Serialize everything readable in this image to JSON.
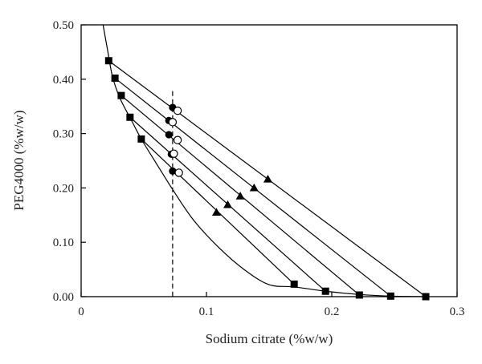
{
  "chart_data": {
    "type": "scatter",
    "xlabel": "Sodium citrate (%w/w)",
    "ylabel": "PEG4000 (%w/w)",
    "xlim": [
      0,
      0.3
    ],
    "ylim": [
      0,
      0.5
    ],
    "x_ticks": [
      0,
      0.1,
      0.2,
      0.3
    ],
    "x_tick_labels": [
      "0",
      "0.1",
      "0.2",
      "0.3"
    ],
    "y_ticks": [
      0,
      0.1,
      0.2,
      0.3,
      0.4,
      0.5
    ],
    "y_tick_labels": [
      "0.00",
      "0.10",
      "0.20",
      "0.30",
      "0.40",
      "0.50"
    ],
    "grid": false,
    "binodal_curve": {
      "x": [
        0.0175,
        0.021,
        0.025,
        0.031,
        0.04,
        0.048,
        0.06,
        0.075,
        0.09,
        0.11,
        0.13,
        0.15,
        0.17,
        0.195,
        0.222,
        0.247,
        0.275
      ],
      "y": [
        0.5,
        0.455,
        0.405,
        0.365,
        0.325,
        0.29,
        0.245,
        0.19,
        0.14,
        0.09,
        0.05,
        0.022,
        0.018,
        0.01,
        0.004,
        0.001,
        0.0
      ]
    },
    "tie_line_ends": {
      "marker": "square",
      "top": [
        [
          0.022,
          0.434
        ],
        [
          0.027,
          0.402
        ],
        [
          0.032,
          0.37
        ],
        [
          0.039,
          0.33
        ],
        [
          0.048,
          0.29
        ]
      ],
      "bottom": [
        [
          0.275,
          0.0
        ],
        [
          0.247,
          0.001
        ],
        [
          0.222,
          0.003
        ],
        [
          0.195,
          0.01
        ],
        [
          0.17,
          0.023
        ]
      ]
    },
    "tie_line_points": {
      "marker": "triangle",
      "x": [
        0.149,
        0.138,
        0.127,
        0.117,
        0.108
      ],
      "y": [
        0.216,
        0.2,
        0.185,
        0.169,
        0.155
      ]
    },
    "filled_circles": {
      "marker": "filled-circle",
      "x": [
        0.073,
        0.07,
        0.07,
        0.072,
        0.073
      ],
      "y": [
        0.348,
        0.324,
        0.298,
        0.262,
        0.231
      ]
    },
    "open_circles": {
      "marker": "open-circle",
      "x": [
        0.077,
        0.073,
        0.077,
        0.074,
        0.078
      ],
      "y": [
        0.342,
        0.321,
        0.288,
        0.263,
        0.228
      ]
    },
    "dashed_line": {
      "x": 0.073
    }
  }
}
